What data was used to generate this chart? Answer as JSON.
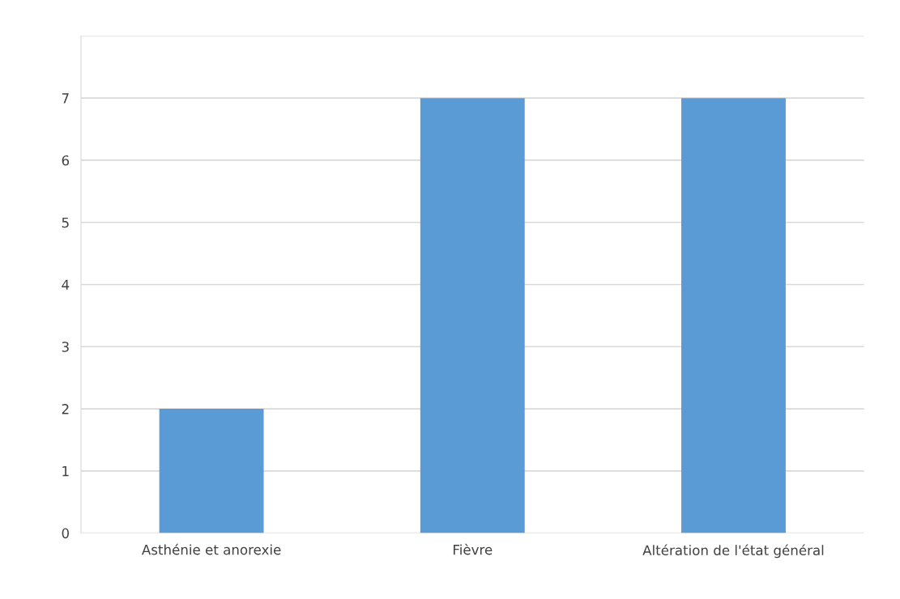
{
  "chart_data": {
    "type": "bar",
    "categories": [
      "Asthénie et anorexie",
      "Fièvre",
      "Altération de l'état général"
    ],
    "values": [
      2,
      7,
      7
    ],
    "color": "#5b9bd5",
    "ylim": [
      0,
      8
    ],
    "yticks": [
      0,
      1,
      2,
      3,
      4,
      5,
      6,
      7,
      {
        "value": 8,
        "label": null
      }
    ],
    "grid": "y",
    "legend": false
  }
}
